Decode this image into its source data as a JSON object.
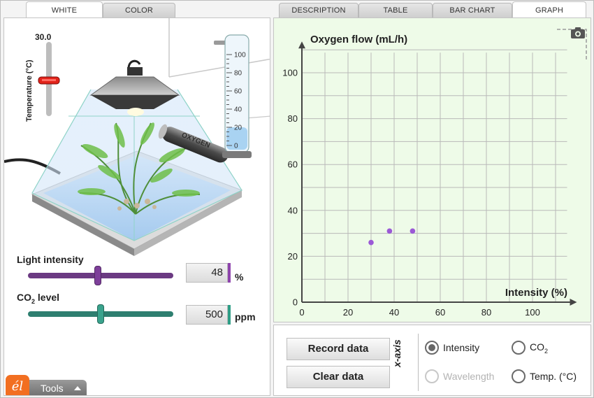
{
  "left_tabs": [
    {
      "label": "WHITE",
      "active": true
    },
    {
      "label": "COLOR",
      "active": false
    }
  ],
  "right_tabs": [
    {
      "label": "DESCRIPTION",
      "active": false
    },
    {
      "label": "TABLE",
      "active": false
    },
    {
      "label": "BAR CHART",
      "active": false
    },
    {
      "label": "GRAPH",
      "active": true
    }
  ],
  "temperature": {
    "value": "30.0",
    "label": "Temperature (°C)"
  },
  "cylinder": {
    "ticks": [
      "100",
      "80",
      "60",
      "40",
      "20",
      "0"
    ],
    "water_fraction": 0.2
  },
  "oxygen_tube_label": "OXYGEN",
  "light_intensity": {
    "label": "Light intensity",
    "value": "48",
    "unit": "%",
    "fraction": 0.48,
    "accent": "#8e44ad"
  },
  "co2_level": {
    "label": "CO",
    "label_sub": "2",
    "label_suffix": " level",
    "value": "500",
    "unit": "ppm",
    "fraction": 0.5,
    "accent": "#2e9e86"
  },
  "tools": {
    "label": "Tools"
  },
  "logo": {
    "text": "él"
  },
  "chart_data": {
    "type": "scatter",
    "ylabel": "Oxygen flow (mL/h)",
    "xlabel": "Intensity (%)",
    "xlim": [
      0,
      115
    ],
    "ylim": [
      0,
      110
    ],
    "x_ticks": [
      0,
      20,
      40,
      60,
      80,
      100
    ],
    "y_ticks": [
      0,
      20,
      40,
      60,
      80,
      100
    ],
    "grid": true,
    "point_color": "#9b59d6",
    "points": [
      {
        "x": 30,
        "y": 26
      },
      {
        "x": 38,
        "y": 31
      },
      {
        "x": 48,
        "y": 31
      }
    ]
  },
  "buttons": {
    "record": "Record data",
    "clear": "Clear data"
  },
  "xaxis": {
    "label": "x-axis",
    "options": [
      {
        "label": "Intensity",
        "sub": "",
        "selected": true,
        "disabled": false
      },
      {
        "label": "CO",
        "sub": "2",
        "selected": false,
        "disabled": false
      },
      {
        "label": "Wavelength",
        "sub": "",
        "selected": false,
        "disabled": true
      },
      {
        "label": "Temp. (°C)",
        "sub": "",
        "selected": false,
        "disabled": false
      }
    ]
  },
  "colors": {
    "graph_bg": "#eefbe8",
    "grid": "#b9b9b9",
    "axis": "#444444"
  }
}
